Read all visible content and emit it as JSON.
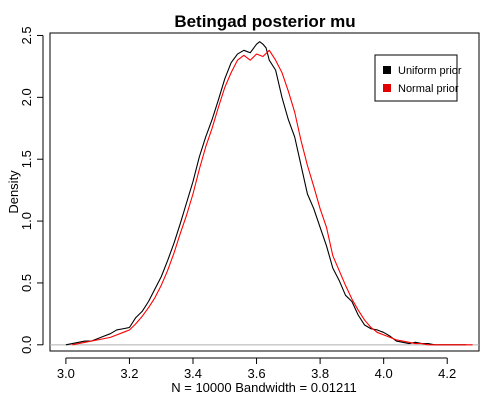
{
  "chart_data": {
    "type": "line",
    "title": "Betingad posterior mu",
    "xlabel": "N = 10000   Bandwidth = 0.01211",
    "ylabel": "Density",
    "xlim": [
      2.95,
      4.3
    ],
    "ylim": [
      -0.05,
      2.52
    ],
    "x_ticks": [
      "3.0",
      "3.2",
      "3.4",
      "3.6",
      "3.8",
      "4.0",
      "4.2"
    ],
    "y_ticks": [
      "0.0",
      "0.5",
      "1.0",
      "1.5",
      "2.0",
      "2.5"
    ],
    "legend": {
      "position": "top-right"
    },
    "zero_line": true,
    "series": [
      {
        "name": "Uniform prior",
        "color": "#000000",
        "x": [
          3.0,
          3.02,
          3.04,
          3.06,
          3.08,
          3.1,
          3.12,
          3.14,
          3.16,
          3.18,
          3.2,
          3.22,
          3.24,
          3.26,
          3.28,
          3.3,
          3.32,
          3.34,
          3.36,
          3.38,
          3.4,
          3.42,
          3.44,
          3.46,
          3.48,
          3.5,
          3.52,
          3.54,
          3.56,
          3.58,
          3.6,
          3.61,
          3.62,
          3.63,
          3.64,
          3.66,
          3.68,
          3.7,
          3.72,
          3.74,
          3.76,
          3.78,
          3.8,
          3.82,
          3.84,
          3.86,
          3.88,
          3.9,
          3.92,
          3.94,
          3.96,
          3.98,
          4.0,
          4.02,
          4.04,
          4.06,
          4.08,
          4.1,
          4.12,
          4.14,
          4.16,
          4.18,
          4.2,
          4.22,
          4.24,
          4.26
        ],
        "values": [
          0.0,
          0.01,
          0.02,
          0.03,
          0.03,
          0.05,
          0.07,
          0.09,
          0.12,
          0.13,
          0.14,
          0.22,
          0.27,
          0.35,
          0.45,
          0.55,
          0.68,
          0.82,
          0.98,
          1.15,
          1.32,
          1.52,
          1.68,
          1.82,
          1.98,
          2.15,
          2.28,
          2.35,
          2.38,
          2.36,
          2.43,
          2.45,
          2.43,
          2.4,
          2.3,
          2.22,
          2.0,
          1.82,
          1.68,
          1.45,
          1.22,
          1.1,
          0.95,
          0.8,
          0.62,
          0.52,
          0.4,
          0.35,
          0.24,
          0.16,
          0.13,
          0.12,
          0.1,
          0.07,
          0.03,
          0.02,
          0.01,
          0.02,
          0.01,
          0.01,
          0.0,
          0.0,
          0.0,
          0.0,
          0.0,
          0.0
        ]
      },
      {
        "name": "Normal prior",
        "color": "#ff0000",
        "x": [
          3.02,
          3.04,
          3.06,
          3.08,
          3.1,
          3.12,
          3.14,
          3.16,
          3.18,
          3.2,
          3.22,
          3.24,
          3.26,
          3.28,
          3.3,
          3.32,
          3.34,
          3.36,
          3.38,
          3.4,
          3.42,
          3.44,
          3.46,
          3.48,
          3.5,
          3.52,
          3.54,
          3.56,
          3.58,
          3.6,
          3.62,
          3.64,
          3.66,
          3.68,
          3.7,
          3.72,
          3.74,
          3.76,
          3.78,
          3.8,
          3.82,
          3.84,
          3.86,
          3.88,
          3.9,
          3.92,
          3.94,
          3.96,
          3.98,
          4.0,
          4.02,
          4.04,
          4.06,
          4.08,
          4.1,
          4.12,
          4.14,
          4.16,
          4.18,
          4.2,
          4.22,
          4.24,
          4.26,
          4.28
        ],
        "values": [
          0.0,
          0.01,
          0.02,
          0.03,
          0.04,
          0.05,
          0.06,
          0.08,
          0.1,
          0.12,
          0.17,
          0.23,
          0.3,
          0.38,
          0.48,
          0.6,
          0.74,
          0.9,
          1.05,
          1.22,
          1.42,
          1.6,
          1.75,
          1.92,
          2.08,
          2.2,
          2.3,
          2.34,
          2.3,
          2.35,
          2.33,
          2.38,
          2.3,
          2.2,
          2.05,
          1.88,
          1.65,
          1.45,
          1.28,
          1.1,
          0.95,
          0.72,
          0.6,
          0.48,
          0.37,
          0.28,
          0.2,
          0.14,
          0.1,
          0.08,
          0.06,
          0.04,
          0.03,
          0.02,
          0.01,
          0.01,
          0.0,
          0.0,
          0.0,
          0.0,
          0.0,
          0.0,
          0.0,
          0.0
        ]
      }
    ]
  }
}
